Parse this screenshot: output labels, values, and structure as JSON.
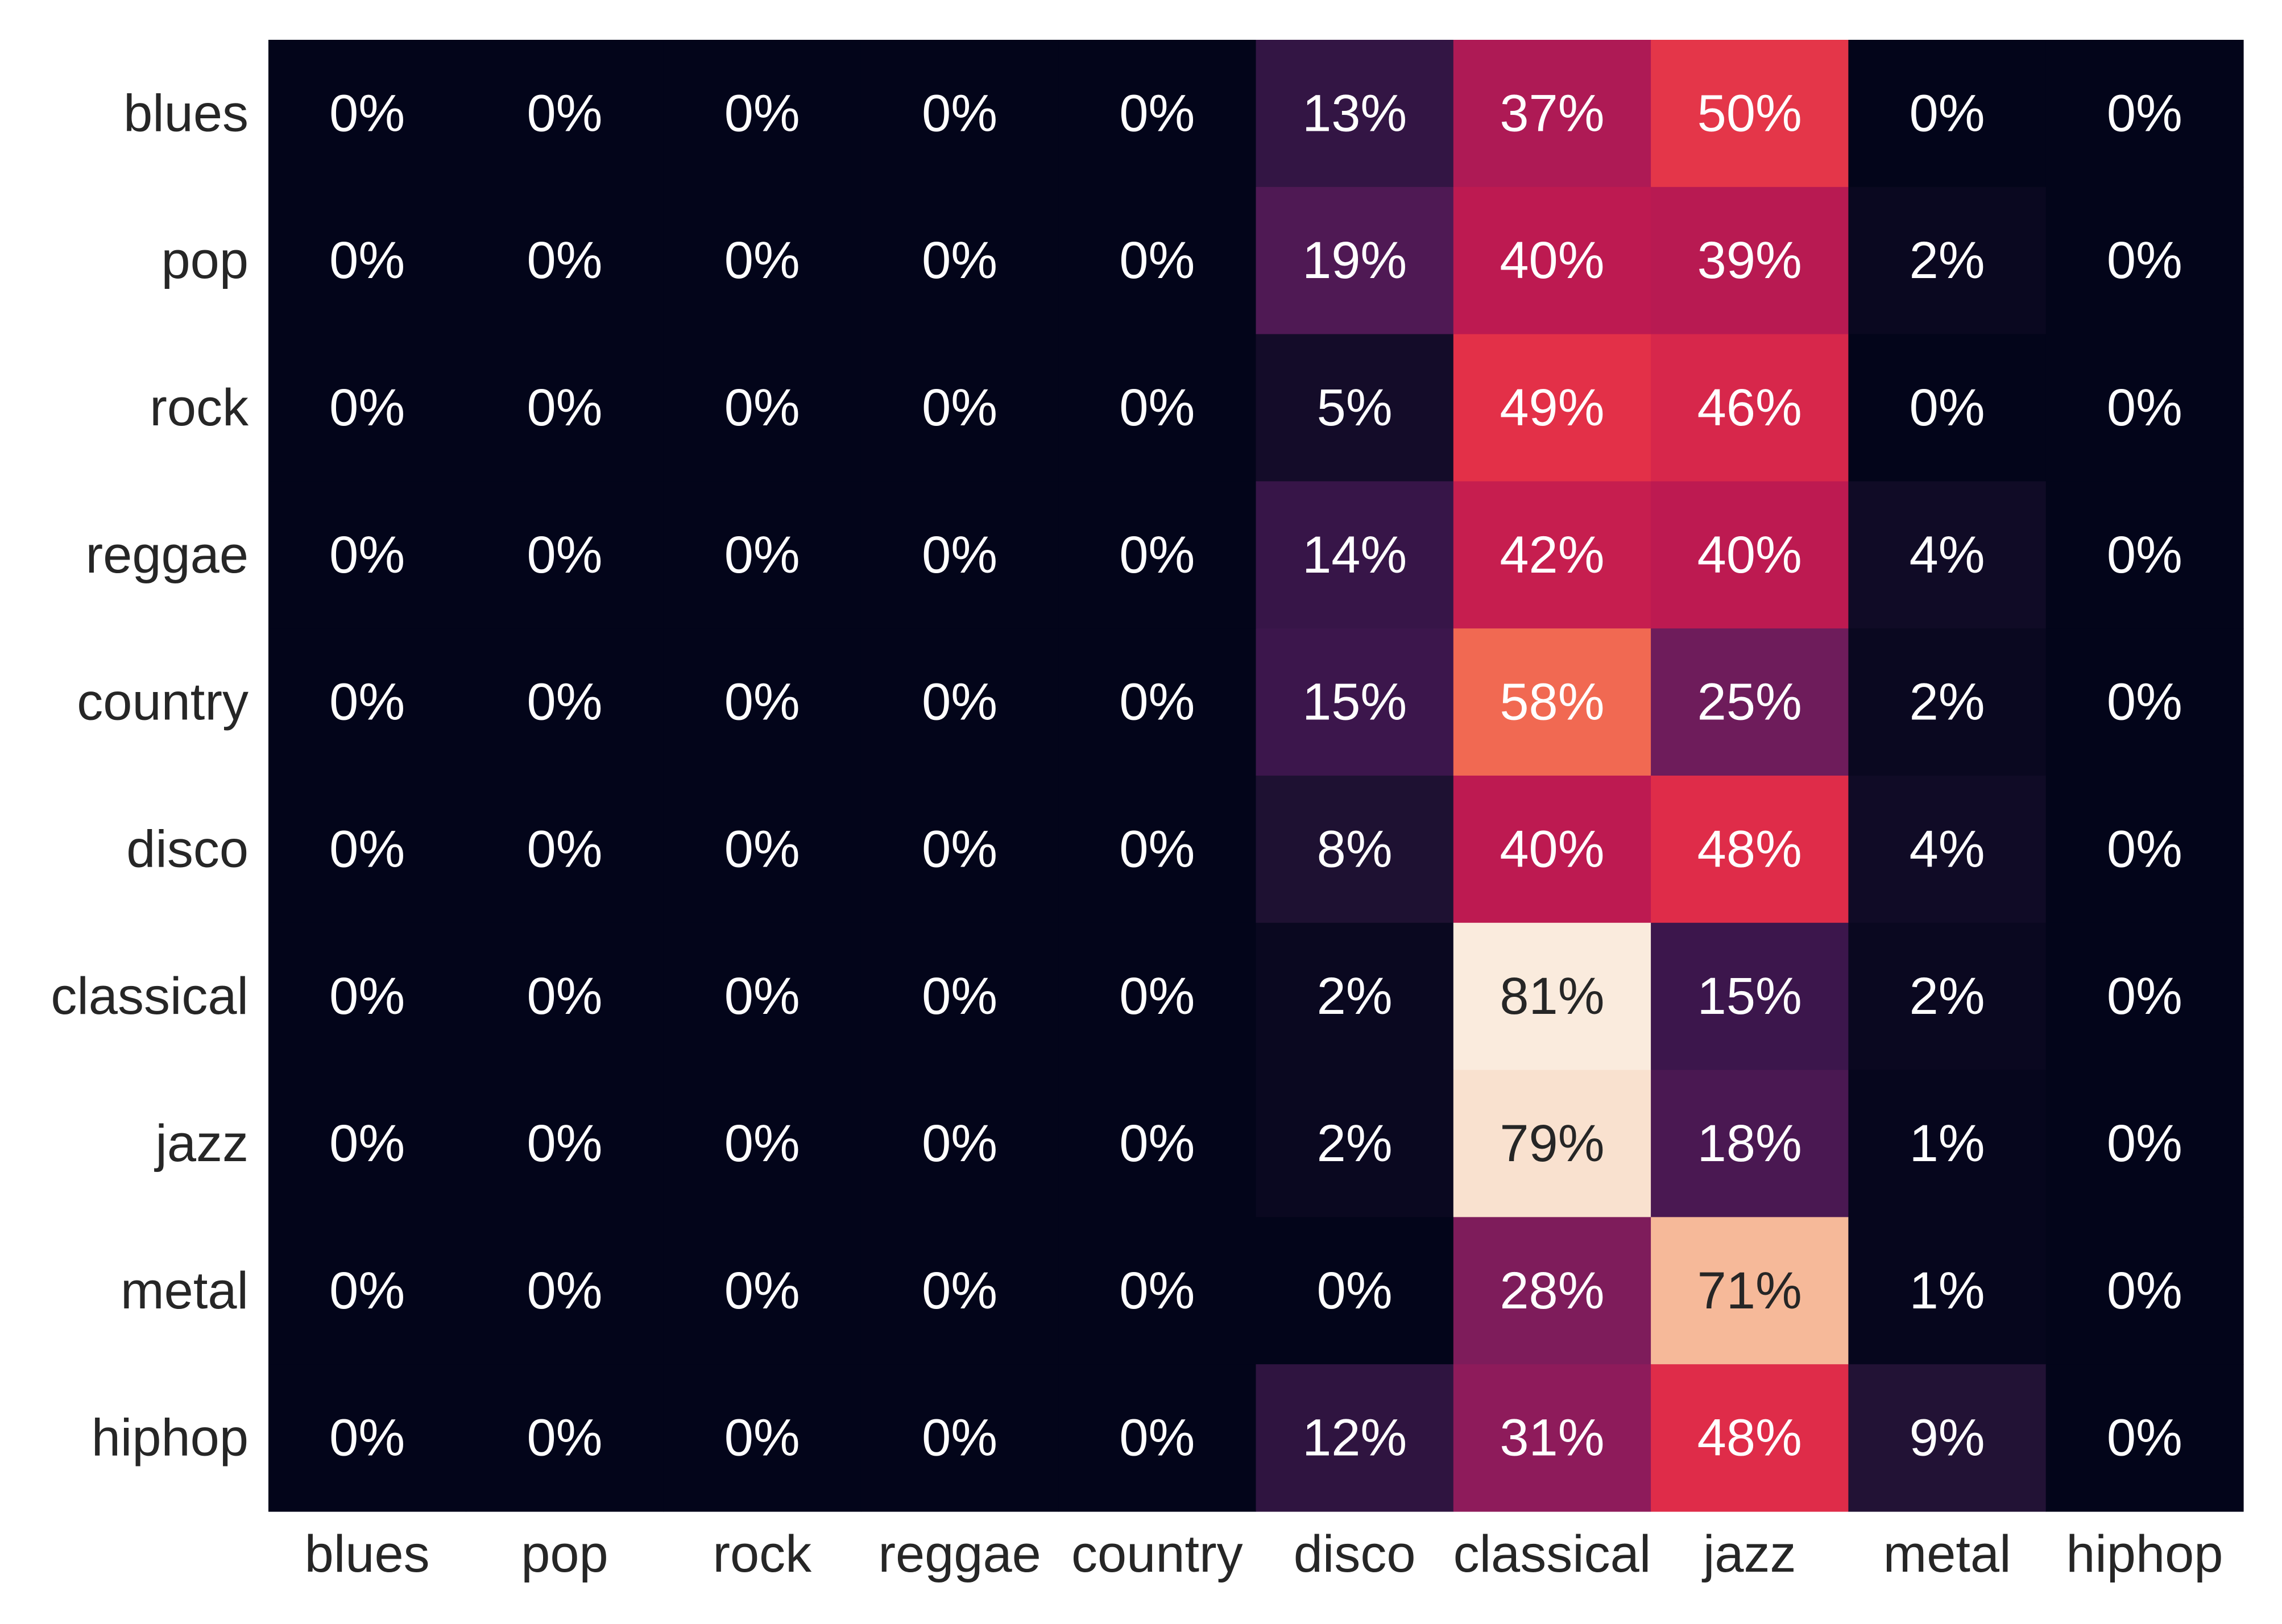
{
  "chart_data": {
    "type": "heatmap",
    "row_labels": [
      "blues",
      "pop",
      "rock",
      "reggae",
      "country",
      "disco",
      "classical",
      "jazz",
      "metal",
      "hiphop"
    ],
    "col_labels": [
      "blues",
      "pop",
      "rock",
      "reggae",
      "country",
      "disco",
      "classical",
      "jazz",
      "metal",
      "hiphop"
    ],
    "values": [
      [
        0,
        0,
        0,
        0,
        0,
        13,
        37,
        50,
        0,
        0
      ],
      [
        0,
        0,
        0,
        0,
        0,
        19,
        40,
        39,
        2,
        0
      ],
      [
        0,
        0,
        0,
        0,
        0,
        5,
        49,
        46,
        0,
        0
      ],
      [
        0,
        0,
        0,
        0,
        0,
        14,
        42,
        40,
        4,
        0
      ],
      [
        0,
        0,
        0,
        0,
        0,
        15,
        58,
        25,
        2,
        0
      ],
      [
        0,
        0,
        0,
        0,
        0,
        8,
        40,
        48,
        4,
        0
      ],
      [
        0,
        0,
        0,
        0,
        0,
        2,
        81,
        15,
        2,
        0
      ],
      [
        0,
        0,
        0,
        0,
        0,
        2,
        79,
        18,
        1,
        0
      ],
      [
        0,
        0,
        0,
        0,
        0,
        0,
        28,
        71,
        1,
        0
      ],
      [
        0,
        0,
        0,
        0,
        0,
        12,
        31,
        48,
        9,
        0
      ]
    ],
    "cell_labels": [
      [
        "0%",
        "0%",
        "0%",
        "0%",
        "0%",
        "13%",
        "37%",
        "50%",
        "0%",
        "0%"
      ],
      [
        "0%",
        "0%",
        "0%",
        "0%",
        "0%",
        "19%",
        "40%",
        "39%",
        "2%",
        "0%"
      ],
      [
        "0%",
        "0%",
        "0%",
        "0%",
        "0%",
        "5%",
        "49%",
        "46%",
        "0%",
        "0%"
      ],
      [
        "0%",
        "0%",
        "0%",
        "0%",
        "0%",
        "14%",
        "42%",
        "40%",
        "4%",
        "0%"
      ],
      [
        "0%",
        "0%",
        "0%",
        "0%",
        "0%",
        "15%",
        "58%",
        "25%",
        "2%",
        "0%"
      ],
      [
        "0%",
        "0%",
        "0%",
        "0%",
        "0%",
        "8%",
        "40%",
        "48%",
        "4%",
        "0%"
      ],
      [
        "0%",
        "0%",
        "0%",
        "0%",
        "0%",
        "2%",
        "81%",
        "15%",
        "2%",
        "0%"
      ],
      [
        "0%",
        "0%",
        "0%",
        "0%",
        "0%",
        "2%",
        "79%",
        "18%",
        "1%",
        "0%"
      ],
      [
        "0%",
        "0%",
        "0%",
        "0%",
        "0%",
        "0%",
        "28%",
        "71%",
        "1%",
        "0%"
      ],
      [
        "0%",
        "0%",
        "0%",
        "0%",
        "0%",
        "12%",
        "31%",
        "48%",
        "9%",
        "0%"
      ]
    ],
    "value_range": [
      0,
      81
    ],
    "colormap": "rocket",
    "colorbar": false,
    "grid": false,
    "title": "",
    "xlabel": "",
    "ylabel": "",
    "text_color_light": "#ffffff",
    "text_color_dark": "#262626",
    "tick_color": "#262626"
  }
}
